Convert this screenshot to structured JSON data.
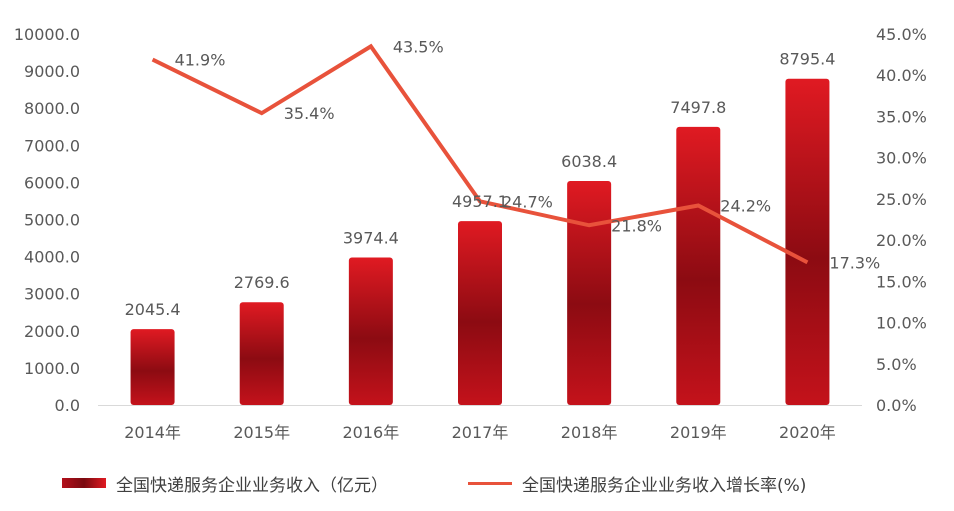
{
  "chart_data": {
    "type": "bar",
    "categories": [
      "2014年",
      "2015年",
      "2016年",
      "2017年",
      "2018年",
      "2019年",
      "2020年"
    ],
    "series": [
      {
        "name": "全国快递服务企业业务收入（亿元）",
        "type": "bar",
        "axis": "left",
        "values": [
          2045.4,
          2769.6,
          3974.4,
          4957.1,
          6038.4,
          7497.8,
          8795.4
        ],
        "labels": [
          "2045.4",
          "2769.6",
          "3974.4",
          "4957.1",
          "6038.4",
          "7497.8",
          "8795.4"
        ]
      },
      {
        "name": "全国快递服务企业业务收入增长率(%)",
        "type": "line",
        "axis": "right",
        "values": [
          41.9,
          35.4,
          43.5,
          24.7,
          21.8,
          24.2,
          17.3
        ],
        "labels": [
          "41.9%",
          "35.4%",
          "43.5%",
          "24.7%",
          "21.8%",
          "24.2%",
          "17.3%"
        ]
      }
    ],
    "y_left": {
      "ylim": [
        0,
        10000
      ],
      "ticks": [
        "0.0",
        "1000.0",
        "2000.0",
        "3000.0",
        "4000.0",
        "5000.0",
        "6000.0",
        "7000.0",
        "8000.0",
        "9000.0",
        "10000.0"
      ]
    },
    "y_right": {
      "ylim": [
        0,
        45
      ],
      "ticks": [
        "0.0%",
        "5.0%",
        "10.0%",
        "15.0%",
        "20.0%",
        "25.0%",
        "30.0%",
        "35.0%",
        "40.0%",
        "45.0%"
      ]
    },
    "grid": false,
    "legend_position": "bottom",
    "colors": {
      "bar_dark": "#7a0a10",
      "bar_light": "#e01a22",
      "line": "#e8523b",
      "axis": "#d9d9d9",
      "text": "#595959"
    }
  }
}
